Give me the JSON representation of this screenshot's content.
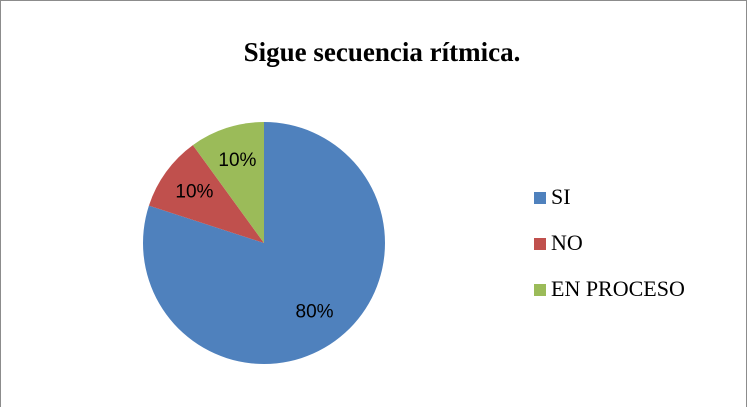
{
  "chart_data": {
    "type": "pie",
    "title": "Sigue secuencia rítmica.",
    "categories": [
      "SI",
      "NO",
      "EN PROCESO"
    ],
    "values": [
      80,
      10,
      10
    ],
    "value_labels": [
      "80%",
      "10%",
      "10%"
    ],
    "colors": [
      "#4f81bd",
      "#c0504d",
      "#9bbb59"
    ],
    "legend": "right"
  }
}
